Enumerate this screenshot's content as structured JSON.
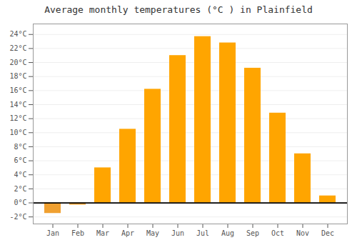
{
  "chart_data": {
    "type": "bar",
    "title": "Average monthly temperatures (°C ) in Plainfield",
    "categories": [
      "Jan",
      "Feb",
      "Mar",
      "Apr",
      "May",
      "Jun",
      "Jul",
      "Aug",
      "Sep",
      "Oct",
      "Nov",
      "Dec"
    ],
    "values": [
      -1.5,
      -0.3,
      5.0,
      10.5,
      16.2,
      21.0,
      23.7,
      22.8,
      19.2,
      12.8,
      7.0,
      1.0
    ],
    "colors": [
      "#F0A030",
      "#F0A030",
      "#FFA500",
      "#FFA500",
      "#FFA500",
      "#FFA500",
      "#FFA500",
      "#FFA500",
      "#FFA500",
      "#FFA500",
      "#FFA500",
      "#FFA500"
    ],
    "ylim": [
      -3,
      25.5
    ],
    "yticks": [
      {
        "value": -2,
        "label": "-2°C"
      },
      {
        "value": 0,
        "label": "0°C"
      },
      {
        "value": 2,
        "label": "2°C"
      },
      {
        "value": 4,
        "label": "4°C"
      },
      {
        "value": 6,
        "label": "6°C"
      },
      {
        "value": 8,
        "label": "8°C"
      },
      {
        "value": 10,
        "label": "10°C"
      },
      {
        "value": 12,
        "label": "12°C"
      },
      {
        "value": 14,
        "label": "14°C"
      },
      {
        "value": 16,
        "label": "16°C"
      },
      {
        "value": 18,
        "label": "18°C"
      },
      {
        "value": 20,
        "label": "20°C"
      },
      {
        "value": 22,
        "label": "22°C"
      },
      {
        "value": 24,
        "label": "24°C"
      }
    ],
    "grid": true
  }
}
